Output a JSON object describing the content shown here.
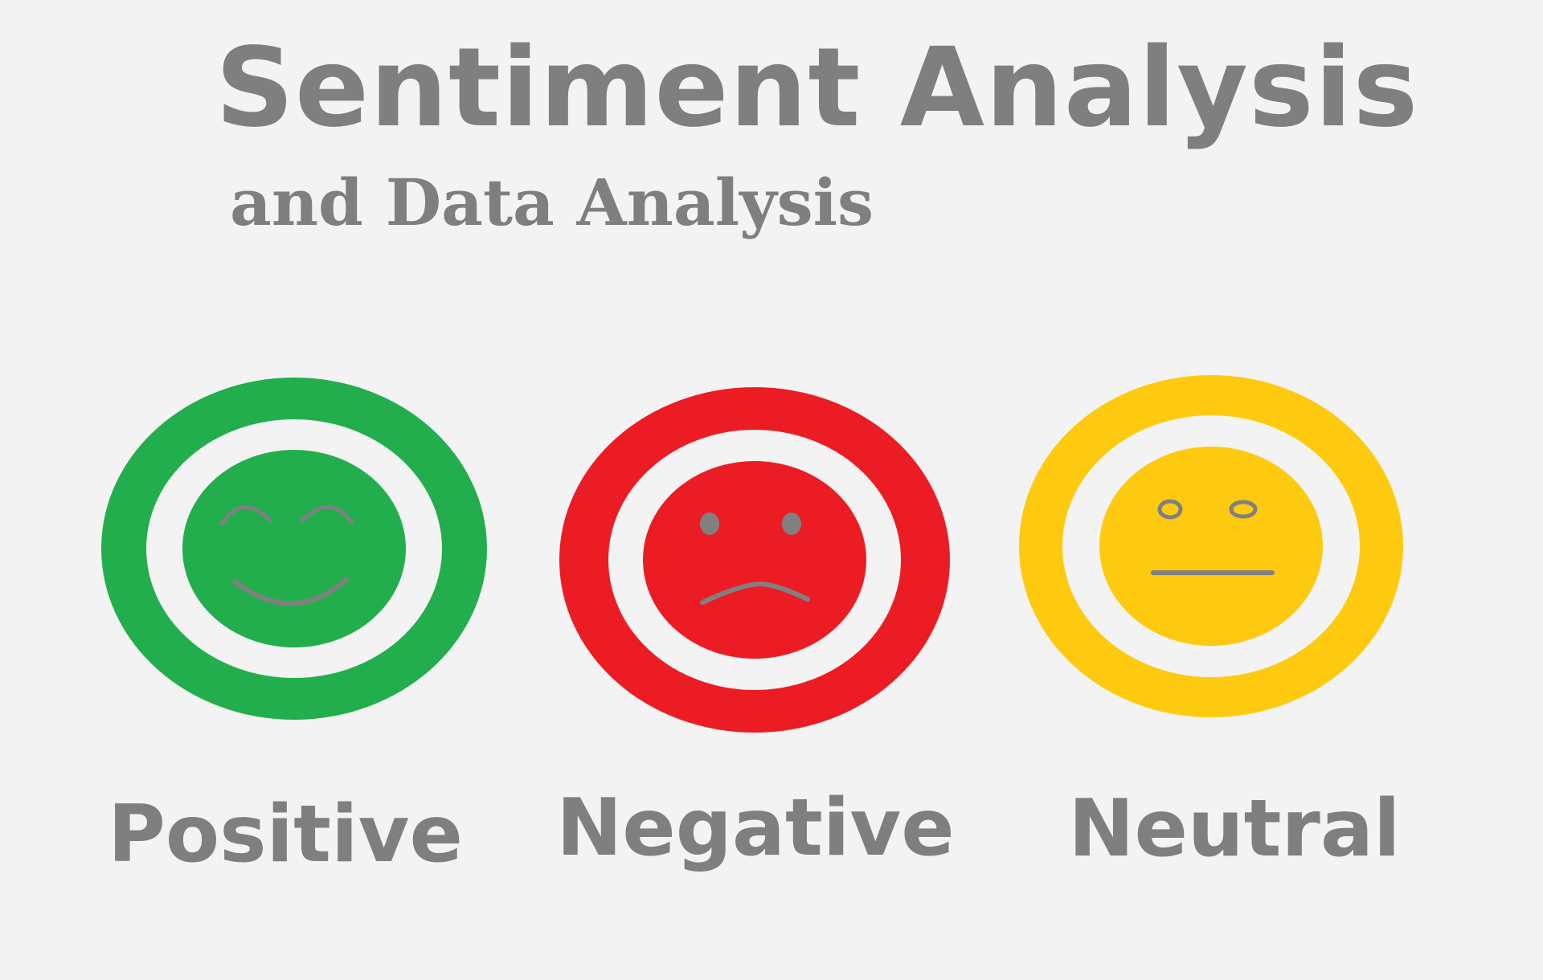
{
  "title": "Sentiment Analysis",
  "subtitle": "and Data Analysis",
  "sentiments": [
    {
      "label": "Positive",
      "color": "#22ae4c",
      "icon": "smiling-face-icon"
    },
    {
      "label": "Negative",
      "color": "#ec1c24",
      "icon": "frowning-face-icon"
    },
    {
      "label": "Neutral",
      "color": "#fdca10",
      "icon": "neutral-face-icon"
    }
  ],
  "feature_color": "#808080",
  "text_color": "#7f7f7f"
}
